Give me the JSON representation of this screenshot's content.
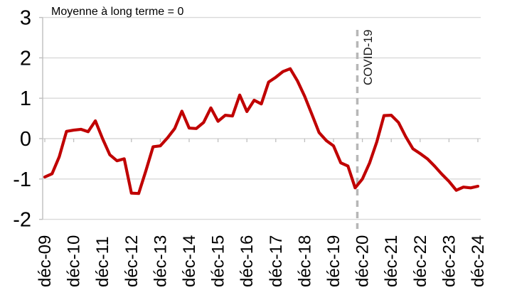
{
  "title": "Moyenne à long terme = 0",
  "annotations": {
    "covid_label": "COVID-19"
  },
  "colors": {
    "line": "#c00000",
    "gridline": "#d9d9d9",
    "axis": "#bfbfbf",
    "dashed_line": "#b7b7b7",
    "text": "#000000"
  },
  "chart_data": {
    "type": "line",
    "title": "Moyenne à long terme = 0",
    "x_start": "déc-09",
    "x_end": "déc-24",
    "x_interval": "quarterly",
    "x_tick_labels": [
      "déc-09",
      "déc-10",
      "déc-11",
      "déc-12",
      "déc-13",
      "déc-14",
      "déc-15",
      "déc-16",
      "déc-17",
      "déc-18",
      "déc-19",
      "déc-20",
      "déc-21",
      "déc-22",
      "déc-23",
      "déc-24"
    ],
    "y_ticks": [
      3,
      2,
      1,
      0,
      -1,
      -2
    ],
    "ylim": [
      -2,
      3
    ],
    "xlabel": "",
    "ylabel": "",
    "grid": "horizontal",
    "legend": "none",
    "line_color": "#c00000",
    "values": [
      -0.95,
      -0.87,
      -0.45,
      0.18,
      0.21,
      0.23,
      0.17,
      0.44,
      0.0,
      -0.4,
      -0.55,
      -0.5,
      -1.35,
      -1.36,
      -0.8,
      -0.2,
      -0.18,
      0.02,
      0.25,
      0.68,
      0.26,
      0.25,
      0.4,
      0.76,
      0.43,
      0.58,
      0.56,
      1.08,
      0.67,
      0.95,
      0.86,
      1.4,
      1.52,
      1.66,
      1.73,
      1.43,
      1.05,
      0.6,
      0.15,
      -0.05,
      -0.18,
      -0.6,
      -0.68,
      -1.22,
      -1.0,
      -0.6,
      -0.08,
      0.57,
      0.58,
      0.4,
      0.05,
      -0.25,
      -0.37,
      -0.5,
      -0.68,
      -0.88,
      -1.06,
      -1.28,
      -1.2,
      -1.22,
      -1.18
    ],
    "annotations": [
      {
        "type": "vline",
        "label": "COVID-19",
        "approx_date": "2020",
        "x_quarters_from_start": 43.3,
        "style": "dashed",
        "color": "#b7b7b7"
      }
    ]
  }
}
